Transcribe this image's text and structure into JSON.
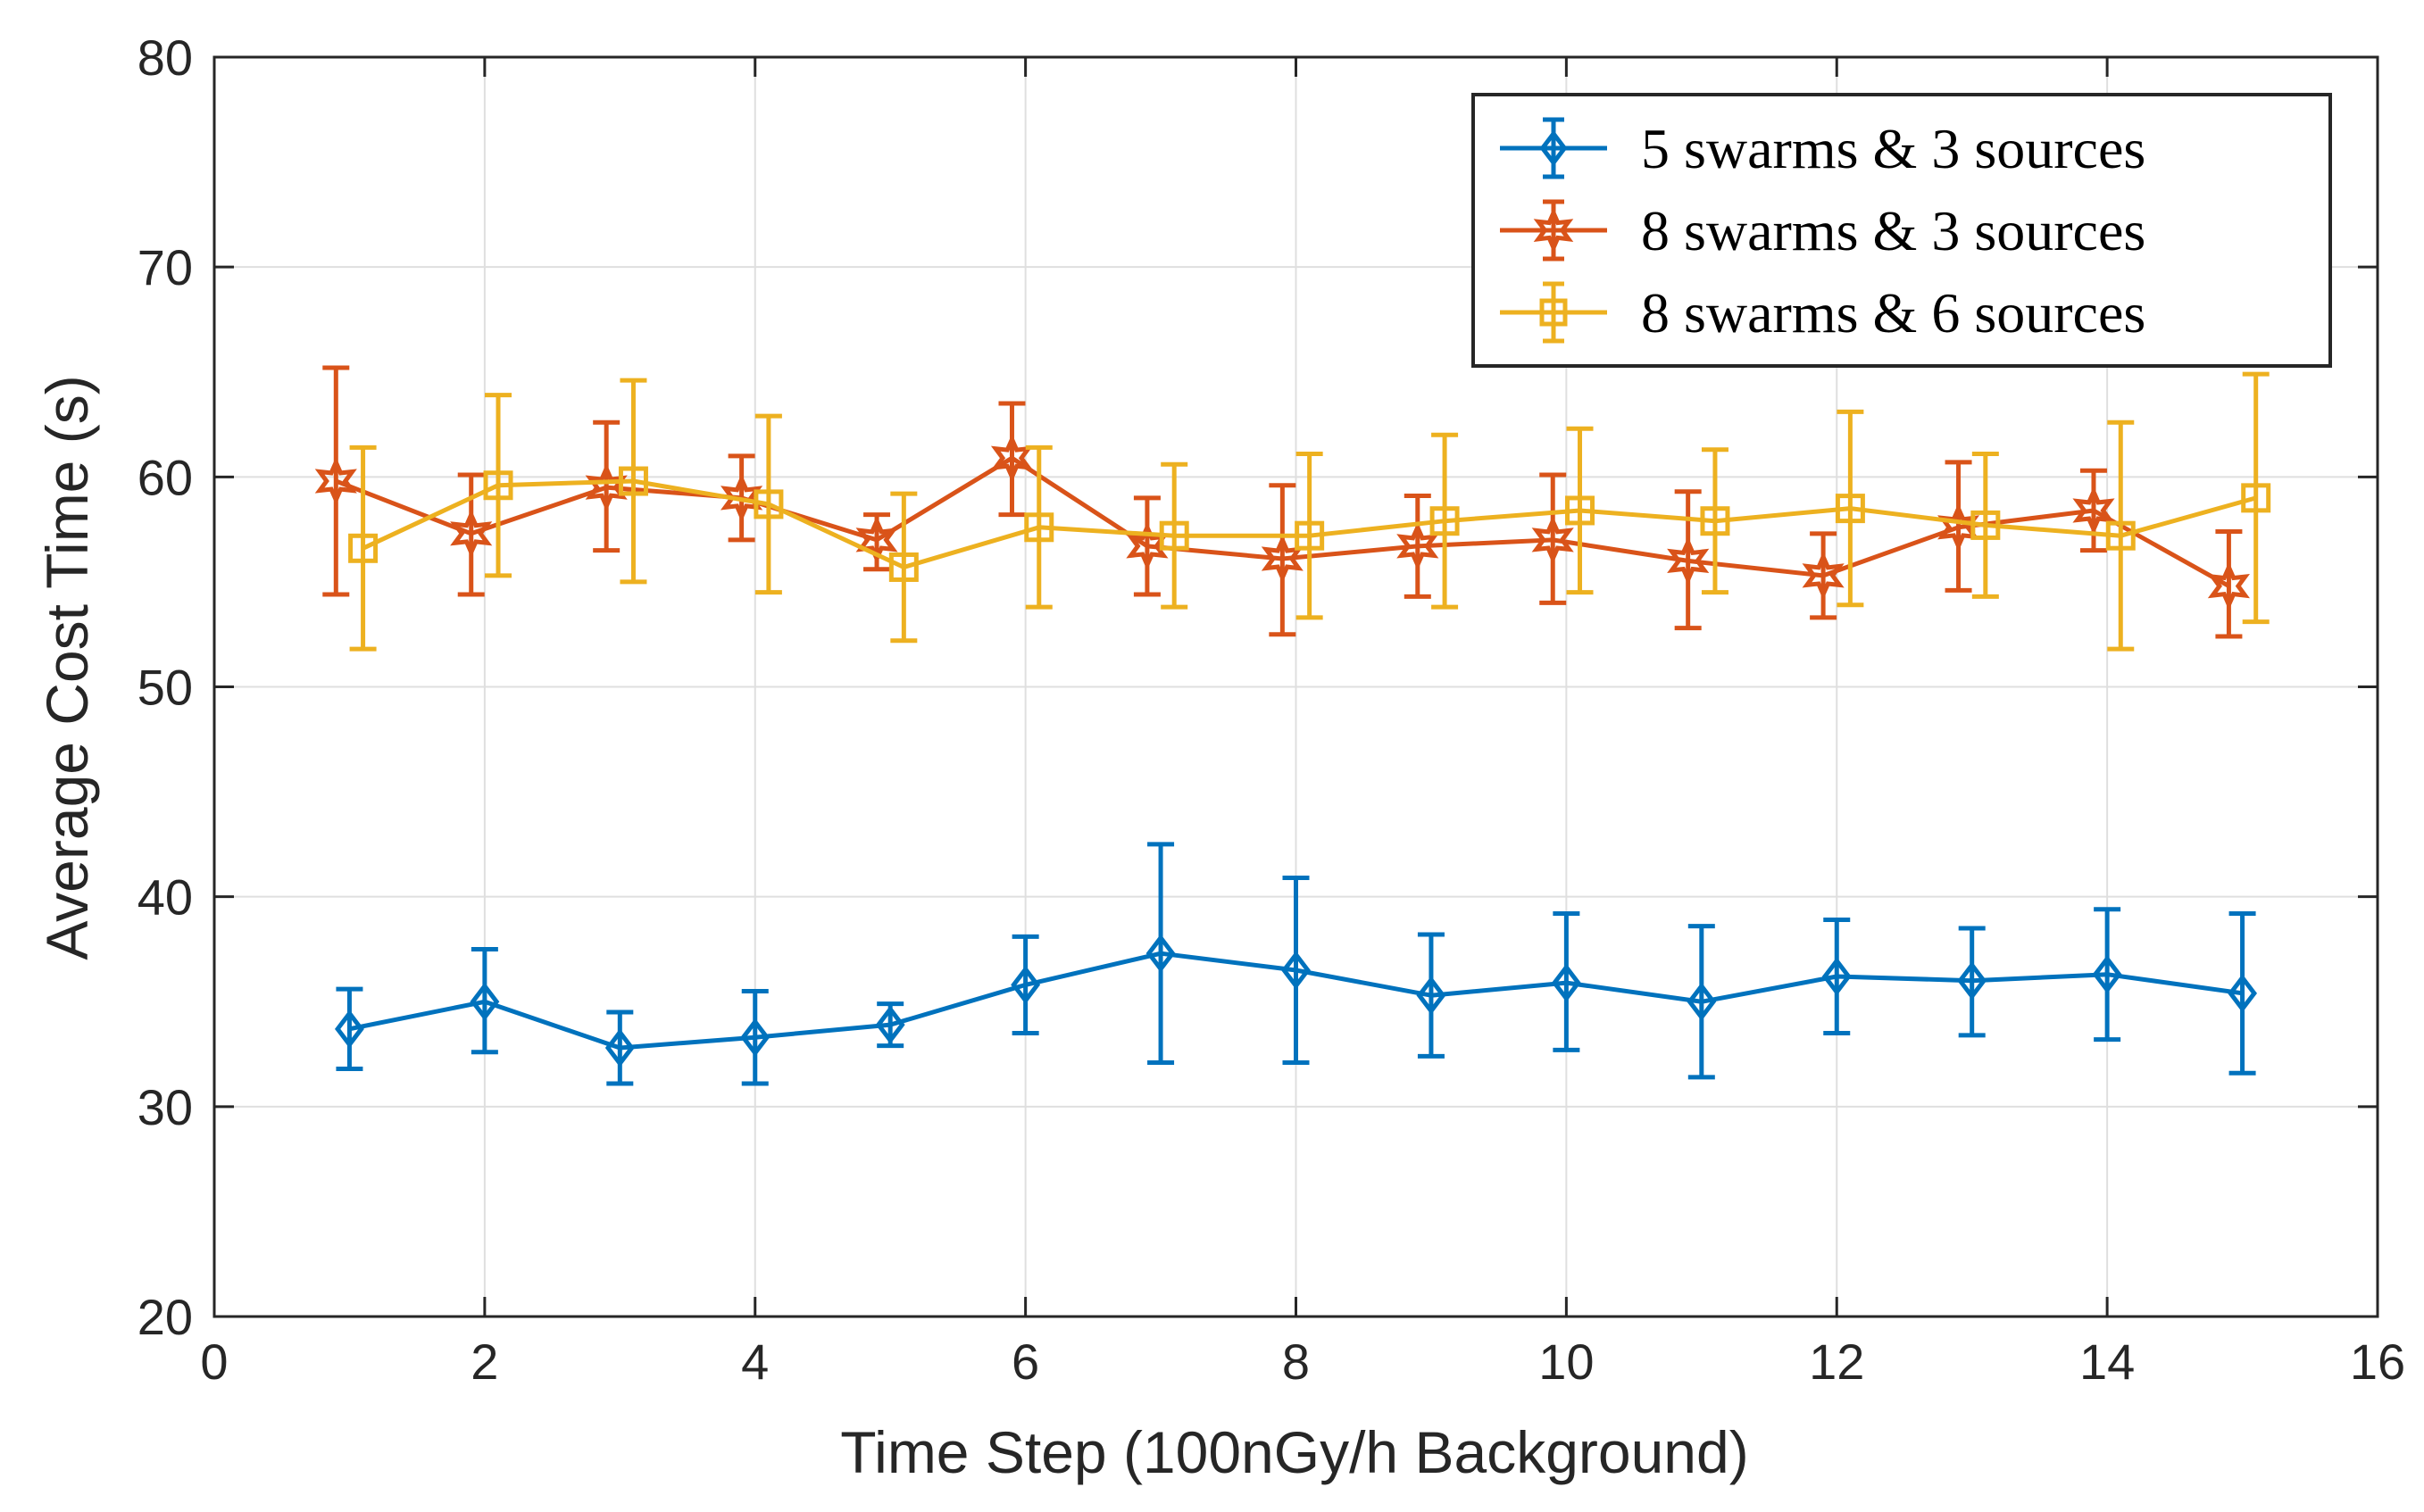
{
  "chart_data": {
    "type": "line",
    "title": "",
    "xlabel": "Time Step (100nGy/h Background)",
    "ylabel": "Average Cost Time (s)",
    "xlim": [
      0,
      16
    ],
    "ylim": [
      20,
      80
    ],
    "xticks": [
      0,
      2,
      4,
      6,
      8,
      10,
      12,
      14,
      16
    ],
    "yticks": [
      20,
      30,
      40,
      50,
      60,
      70,
      80
    ],
    "grid": true,
    "error_bars": true,
    "legend_position": "top-right",
    "series": [
      {
        "name": "5 swarms & 3 sources",
        "color": "#0072BD",
        "marker": "diamond",
        "x": [
          1,
          2,
          3,
          4,
          5,
          6,
          7,
          8,
          9,
          10,
          11,
          12,
          13,
          14,
          15
        ],
        "y": [
          33.7,
          35.0,
          32.8,
          33.3,
          33.9,
          35.8,
          37.3,
          36.5,
          35.3,
          35.9,
          35.0,
          36.2,
          36.0,
          36.3,
          35.4
        ],
        "err_low": [
          1.9,
          2.4,
          1.7,
          2.2,
          1.0,
          2.3,
          5.2,
          4.4,
          2.9,
          3.2,
          3.6,
          2.7,
          2.6,
          3.1,
          3.8
        ],
        "err_high": [
          1.9,
          2.5,
          1.7,
          2.2,
          1.0,
          2.3,
          5.2,
          4.4,
          2.9,
          3.3,
          3.6,
          2.7,
          2.5,
          3.1,
          3.8
        ]
      },
      {
        "name": "8 swarms & 3 sources",
        "color": "#D95319",
        "marker": "hexagram",
        "x": [
          0.9,
          1.9,
          2.9,
          3.9,
          4.9,
          5.9,
          6.9,
          7.9,
          8.9,
          9.9,
          10.9,
          11.9,
          12.9,
          13.9,
          14.9
        ],
        "y": [
          59.8,
          57.3,
          59.5,
          59.0,
          57.0,
          60.9,
          56.7,
          56.1,
          56.7,
          57.0,
          56.0,
          55.3,
          57.6,
          58.4,
          54.8
        ],
        "err_low": [
          5.4,
          2.9,
          3.0,
          2.0,
          1.4,
          2.7,
          2.3,
          3.6,
          2.4,
          3.0,
          3.2,
          2.0,
          3.0,
          1.9,
          2.4
        ],
        "err_high": [
          5.4,
          2.8,
          3.1,
          2.0,
          1.2,
          2.6,
          2.3,
          3.5,
          2.4,
          3.1,
          3.3,
          2.0,
          3.1,
          1.9,
          2.6
        ]
      },
      {
        "name": "8 swarms & 6 sources",
        "color": "#EDB120",
        "marker": "square",
        "x": [
          1.1,
          2.1,
          3.1,
          4.1,
          5.1,
          6.1,
          7.1,
          8.1,
          9.1,
          10.1,
          11.1,
          12.1,
          13.1,
          14.1,
          15.1
        ],
        "y": [
          56.6,
          59.6,
          59.8,
          58.7,
          55.7,
          57.6,
          57.2,
          57.2,
          57.9,
          58.4,
          57.9,
          58.5,
          57.7,
          57.2,
          59.0
        ],
        "err_low": [
          4.8,
          4.3,
          4.8,
          4.2,
          3.5,
          3.8,
          3.4,
          3.9,
          4.1,
          3.9,
          3.4,
          4.6,
          3.4,
          5.4,
          5.9
        ],
        "err_high": [
          4.8,
          4.3,
          4.8,
          4.2,
          3.5,
          3.8,
          3.4,
          3.9,
          4.1,
          3.9,
          3.4,
          4.6,
          3.4,
          5.4,
          5.9
        ]
      }
    ]
  }
}
